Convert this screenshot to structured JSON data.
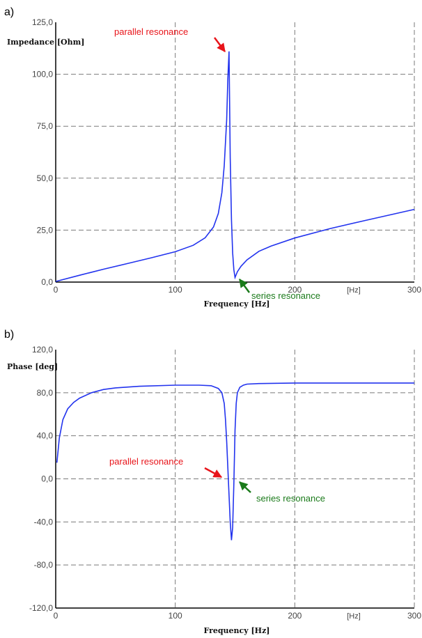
{
  "chart_data": [
    {
      "panel_label": "a)",
      "type": "line",
      "ylabel": "Impedance [Ohm]",
      "xlabel": "Frequency [Hz]",
      "x_unit_label": "[Hz]",
      "xlim": [
        0,
        300
      ],
      "ylim": [
        0,
        125
      ],
      "x_ticks": [
        0,
        100,
        200,
        300
      ],
      "y_ticks": [
        0,
        25,
        50,
        75,
        100,
        125
      ],
      "x_tick_labels": [
        "0",
        "100",
        "200",
        "300"
      ],
      "y_tick_labels": [
        "0,0",
        "25,0",
        "50,0",
        "75,0",
        "100,0",
        "125,0"
      ],
      "grid": true,
      "series": [
        {
          "color": "#2233ee",
          "x": [
            0,
            20,
            40,
            60,
            80,
            100,
            115,
            125,
            132,
            136,
            139,
            141,
            143,
            144,
            145,
            146,
            147,
            148,
            149,
            150,
            152,
            155,
            160,
            170,
            180,
            200,
            230,
            260,
            300
          ],
          "y": [
            0.3,
            3.3,
            6.2,
            8.9,
            11.7,
            14.6,
            17.7,
            21.3,
            26.5,
            33,
            43,
            56,
            78,
            98,
            111,
            60,
            30,
            14,
            6,
            2.2,
            5,
            7.6,
            10.7,
            14.8,
            17.3,
            21.2,
            25.8,
            29.8,
            35
          ]
        }
      ],
      "annotations": [
        {
          "text": "parallel resonance",
          "x": 145,
          "y": 111,
          "color": "#e8141a"
        },
        {
          "text": "series resonance",
          "x": 150,
          "y": 2.2,
          "color": "#1a7a1a"
        }
      ]
    },
    {
      "panel_label": "b)",
      "type": "line",
      "ylabel": "Phase [deg]",
      "xlabel": "Frequency [Hz]",
      "x_unit_label": "[Hz]",
      "xlim": [
        0,
        300
      ],
      "ylim": [
        -120,
        120
      ],
      "x_ticks": [
        0,
        100,
        200,
        300
      ],
      "y_ticks": [
        -120,
        -80,
        -40,
        0,
        40,
        80,
        120
      ],
      "x_tick_labels": [
        "0",
        "100",
        "200",
        "300"
      ],
      "y_tick_labels": [
        "-120,0",
        "-80,0",
        "-40,0",
        "0,0",
        "40,0",
        "80,0",
        "120,0"
      ],
      "grid": true,
      "series": [
        {
          "color": "#2233ee",
          "x": [
            1,
            3,
            6,
            10,
            15,
            20,
            30,
            40,
            50,
            70,
            100,
            120,
            130,
            136,
            139,
            141,
            142,
            143,
            144,
            145,
            146,
            147,
            148,
            149,
            150,
            151,
            152,
            154,
            157,
            160,
            170,
            200,
            250,
            300
          ],
          "y": [
            15,
            38,
            55,
            65,
            71,
            75,
            80,
            83,
            84.5,
            86,
            87,
            87,
            86.5,
            84,
            80,
            70,
            55,
            35,
            10,
            -15,
            -40,
            -57,
            -45,
            -5,
            45,
            70,
            80,
            85,
            87,
            88,
            88.5,
            89,
            89,
            89
          ]
        }
      ],
      "annotations": [
        {
          "text": "parallel resonance",
          "x": 145,
          "y": 0,
          "color": "#e8141a"
        },
        {
          "text": "series resonance",
          "x": 150,
          "y": 0,
          "color": "#1a7a1a"
        }
      ]
    }
  ]
}
